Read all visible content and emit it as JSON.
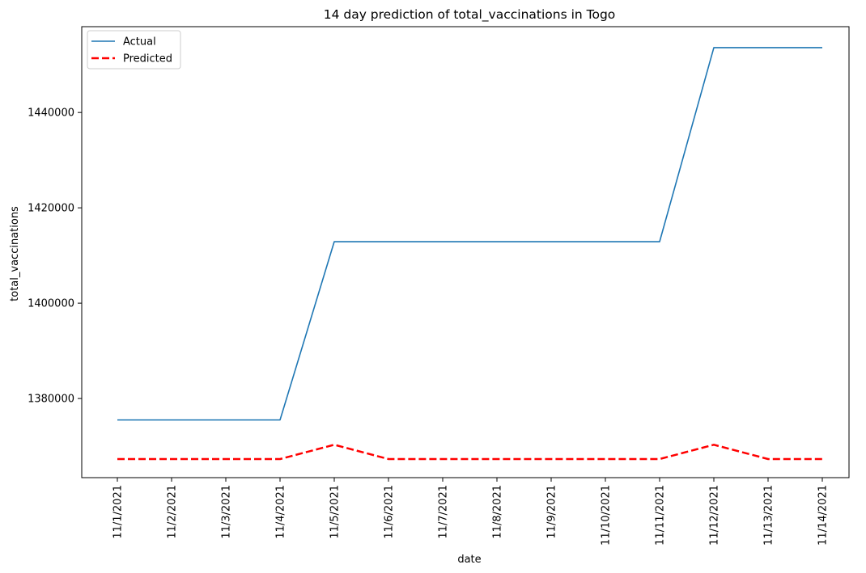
{
  "chart_data": {
    "type": "line",
    "title": "14 day prediction of total_vaccinations in Togo",
    "xlabel": "date",
    "ylabel": "total_vaccinations",
    "categories": [
      "11/1/2021",
      "11/2/2021",
      "11/3/2021",
      "11/4/2021",
      "11/5/2021",
      "11/6/2021",
      "11/7/2021",
      "11/8/2021",
      "11/9/2021",
      "11/10/2021",
      "11/11/2021",
      "11/12/2021",
      "11/13/2021",
      "11/14/2021"
    ],
    "yticks": [
      1380000,
      1400000,
      1420000,
      1440000
    ],
    "ylim": [
      1363400,
      1458000
    ],
    "grid": false,
    "legend_position": "top-left",
    "series": [
      {
        "name": "Actual",
        "color": "#1f77b4",
        "style": "solid",
        "values": [
          1375500,
          1375500,
          1375500,
          1375500,
          1412900,
          1412900,
          1412900,
          1412900,
          1412900,
          1412900,
          1412900,
          1453600,
          1453600,
          1453600
        ]
      },
      {
        "name": "Predicted",
        "color": "#ff0000",
        "style": "dashed",
        "values": [
          1367300,
          1367300,
          1367300,
          1367300,
          1370300,
          1367300,
          1367300,
          1367300,
          1367300,
          1367300,
          1367300,
          1370300,
          1367300,
          1367300
        ]
      }
    ]
  }
}
